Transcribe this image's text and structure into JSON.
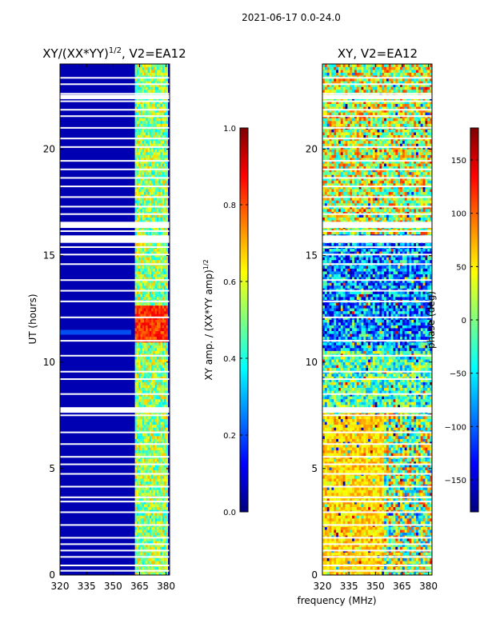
{
  "figure": {
    "suptitle": "2021-06-17 0.0-24.0",
    "shared_xlabel": "frequency (MHz)"
  },
  "chart_data": [
    {
      "type": "heatmap",
      "title_main": "XY/(XX*YY)",
      "title_exp": "1/2",
      "title_suffix": ", V2=EA12",
      "xlabel": "",
      "ylabel": "UT (hours)",
      "xlim": [
        320,
        382
      ],
      "ylim": [
        0,
        24
      ],
      "xticks": [
        320,
        335,
        350,
        365,
        380
      ],
      "yticks": [
        0,
        5,
        10,
        15,
        20
      ],
      "colorbar": {
        "label_main": "XY amp. / (XX*YY amp)",
        "label_exp": "1/2",
        "range": [
          0.0,
          1.0
        ],
        "ticks": [
          0.0,
          0.2,
          0.4,
          0.6,
          0.8,
          1.0
        ],
        "tick_labels": [
          "0.0",
          "0.2",
          "0.4",
          "0.6",
          "0.8",
          "1.0"
        ],
        "colormap": "jet"
      },
      "flagged_time_rows_hours": [
        0.2,
        0.45,
        0.85,
        1.15,
        1.45,
        1.75,
        2.35,
        2.95,
        3.45,
        3.65,
        4.15,
        4.75,
        5.2,
        5.55,
        6.15,
        6.7,
        7.5,
        7.7,
        8.5,
        9.2,
        9.55,
        10.3,
        11.0,
        12.1,
        12.85,
        13.35,
        13.85,
        14.6,
        15.05,
        15.4,
        15.9,
        16.15,
        16.55,
        16.95,
        17.3,
        17.75,
        18.25,
        18.65,
        19.05,
        19.45,
        20.1,
        20.5,
        21.0,
        21.55,
        21.85,
        22.25,
        22.6,
        23.05,
        23.35
      ],
      "flagged_time_bands_hours": [
        [
          7.62,
          7.88
        ],
        [
          15.6,
          15.95
        ],
        [
          16.3,
          16.55
        ],
        [
          22.35,
          22.55
        ]
      ],
      "signal_bands_mhz": [
        [
          362,
          366
        ],
        [
          366,
          370
        ],
        [
          370,
          375
        ],
        [
          375,
          381
        ]
      ],
      "signal_amplitude_range": [
        0.35,
        0.7
      ],
      "peak_interval_hours": [
        10.9,
        12.6
      ],
      "peak_amplitude": 0.9,
      "background_amplitude": 0.05
    },
    {
      "type": "heatmap",
      "title": "XY, V2=EA12",
      "xlabel": "",
      "ylabel": "",
      "xlim": [
        320,
        382
      ],
      "ylim": [
        0,
        24
      ],
      "xticks": [
        320,
        335,
        350,
        365,
        380
      ],
      "yticks": [
        0,
        5,
        10,
        15,
        20
      ],
      "colorbar": {
        "label": "phase (deg)",
        "range": [
          -180,
          180
        ],
        "ticks": [
          -150,
          -100,
          -50,
          0,
          50,
          100,
          150
        ],
        "tick_labels": [
          "−150",
          "−100",
          "−50",
          "0",
          "50",
          "100",
          "150"
        ],
        "colormap": "jet"
      },
      "flagged_time_rows_hours": [
        0.2,
        0.45,
        0.85,
        1.15,
        1.45,
        1.75,
        2.35,
        2.95,
        3.45,
        3.65,
        4.15,
        4.75,
        5.2,
        5.55,
        6.15,
        6.7,
        7.5,
        7.7,
        8.5,
        9.2,
        9.55,
        10.3,
        11.0,
        12.1,
        12.85,
        13.35,
        13.85,
        14.6,
        15.05,
        15.4,
        15.9,
        16.15,
        16.55,
        16.95,
        17.3,
        17.75,
        18.25,
        18.65,
        19.05,
        19.45,
        20.1,
        20.5,
        21.0,
        21.55,
        21.85,
        22.25,
        22.6,
        23.05,
        23.35
      ],
      "flagged_time_bands_hours": [
        [
          7.62,
          7.88
        ],
        [
          15.6,
          15.95
        ],
        [
          16.3,
          16.55
        ],
        [
          22.35,
          22.55
        ]
      ],
      "phase_regions": [
        {
          "hours": [
            0,
            7.6
          ],
          "mhz": [
            320,
            355
          ],
          "phase_deg": [
            30,
            90
          ]
        },
        {
          "hours": [
            0,
            7.6
          ],
          "mhz": [
            355,
            382
          ],
          "phase_deg": [
            -100,
            120
          ]
        },
        {
          "hours": [
            7.6,
            10.5
          ],
          "mhz": [
            320,
            382
          ],
          "phase_deg": [
            -90,
            60
          ]
        },
        {
          "hours": [
            10.5,
            16
          ],
          "mhz": [
            320,
            382
          ],
          "phase_deg": [
            -170,
            0
          ]
        },
        {
          "hours": [
            16,
            24
          ],
          "mhz": [
            320,
            382
          ],
          "phase_deg": [
            -60,
            120
          ]
        }
      ]
    }
  ]
}
